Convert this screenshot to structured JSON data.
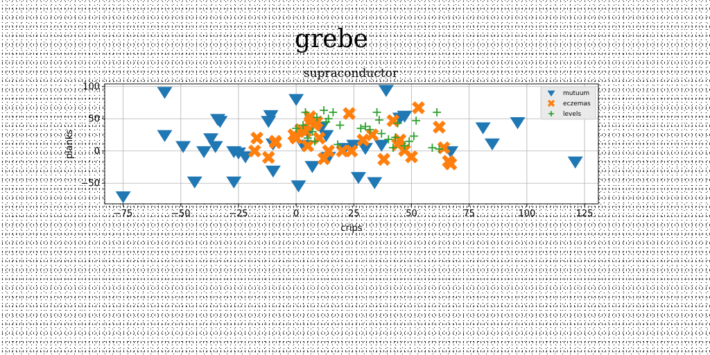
{
  "figure": {
    "suptitle": "grebe"
  },
  "chart_data": {
    "type": "scatter",
    "title": "supraconductor",
    "xlabel": "crips",
    "ylabel": "planks",
    "xlim": [
      -83,
      131
    ],
    "ylim": [
      -82,
      104
    ],
    "xticks": [
      -75,
      -50,
      -25,
      0,
      25,
      50,
      75,
      100,
      125
    ],
    "yticks": [
      -50,
      0,
      50,
      100
    ],
    "grid": true,
    "legend_position": "top-right",
    "series": [
      {
        "name": "mutuum",
        "marker": "triangle-down",
        "color": "#1f77b4",
        "points": [
          [
            -75,
            -70
          ],
          [
            -57,
            92
          ],
          [
            -57,
            25
          ],
          [
            -49,
            8
          ],
          [
            -44,
            -47
          ],
          [
            -40,
            0
          ],
          [
            -37,
            20
          ],
          [
            -35,
            8
          ],
          [
            -34,
            50
          ],
          [
            -33,
            47
          ],
          [
            -27,
            -47
          ],
          [
            -27,
            0
          ],
          [
            -25,
            -2
          ],
          [
            -22,
            -8
          ],
          [
            -12,
            47
          ],
          [
            -11,
            56
          ],
          [
            -10,
            -30
          ],
          [
            -10,
            12
          ],
          [
            0,
            81
          ],
          [
            1,
            -53
          ],
          [
            3,
            10
          ],
          [
            5,
            30
          ],
          [
            7,
            -23
          ],
          [
            11,
            38
          ],
          [
            13,
            25
          ],
          [
            14,
            -9
          ],
          [
            21,
            5
          ],
          [
            25,
            10
          ],
          [
            27,
            -40
          ],
          [
            30,
            5
          ],
          [
            34,
            -48
          ],
          [
            37,
            10
          ],
          [
            39,
            95
          ],
          [
            45,
            52
          ],
          [
            47,
            55
          ],
          [
            67,
            0
          ],
          [
            81,
            37
          ],
          [
            85,
            12
          ],
          [
            96,
            45
          ],
          [
            121,
            -16
          ]
        ]
      },
      {
        "name": "eczemas",
        "marker": "x",
        "color": "#ff7f0e",
        "points": [
          [
            -17,
            20
          ],
          [
            -18,
            0
          ],
          [
            -12,
            -10
          ],
          [
            -9,
            13
          ],
          [
            -9,
            15
          ],
          [
            -1,
            25
          ],
          [
            0,
            20
          ],
          [
            2,
            33
          ],
          [
            4,
            30
          ],
          [
            5,
            8
          ],
          [
            6,
            45
          ],
          [
            6,
            53
          ],
          [
            8,
            40
          ],
          [
            9,
            45
          ],
          [
            10,
            20
          ],
          [
            12,
            -12
          ],
          [
            14,
            0
          ],
          [
            20,
            0
          ],
          [
            23,
            58
          ],
          [
            24,
            0
          ],
          [
            29,
            17
          ],
          [
            33,
            25
          ],
          [
            38,
            -13
          ],
          [
            42,
            47
          ],
          [
            44,
            10
          ],
          [
            45,
            17
          ],
          [
            47,
            1
          ],
          [
            50,
            -9
          ],
          [
            53,
            67
          ],
          [
            62,
            37
          ],
          [
            64,
            5
          ],
          [
            66,
            -16
          ],
          [
            67,
            -20
          ]
        ]
      },
      {
        "name": "levels",
        "marker": "plus",
        "color": "#2ca02c",
        "points": [
          [
            0,
            35
          ],
          [
            3,
            40
          ],
          [
            4,
            60
          ],
          [
            5,
            20
          ],
          [
            7,
            30
          ],
          [
            8,
            15
          ],
          [
            9,
            52
          ],
          [
            12,
            63
          ],
          [
            13,
            45
          ],
          [
            14,
            50
          ],
          [
            16,
            60
          ],
          [
            18,
            10
          ],
          [
            19,
            40
          ],
          [
            28,
            35
          ],
          [
            30,
            38
          ],
          [
            32,
            33
          ],
          [
            35,
            60
          ],
          [
            36,
            48
          ],
          [
            37,
            27
          ],
          [
            40,
            18
          ],
          [
            42,
            5
          ],
          [
            43,
            21
          ],
          [
            44,
            43
          ],
          [
            47,
            8
          ],
          [
            49,
            15
          ],
          [
            51,
            23
          ],
          [
            52,
            47
          ],
          [
            59,
            5
          ],
          [
            61,
            60
          ],
          [
            62,
            3
          ]
        ]
      }
    ]
  }
}
